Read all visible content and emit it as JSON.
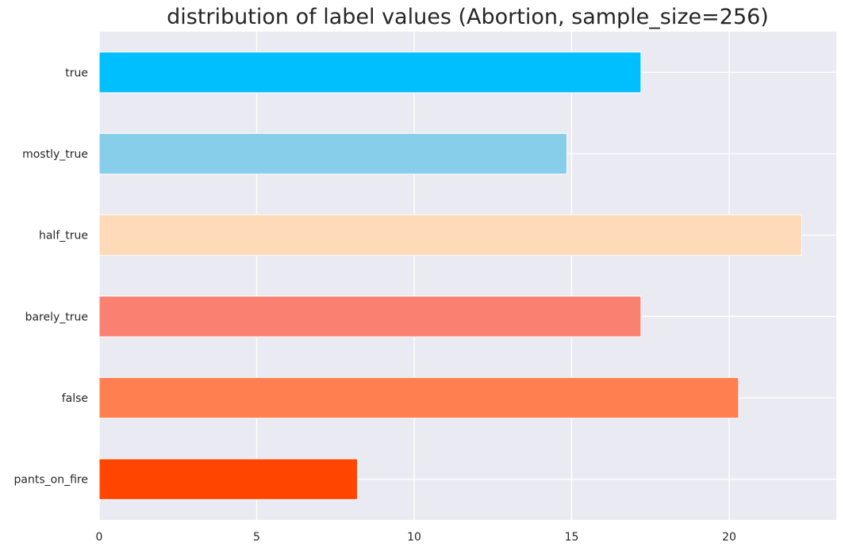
{
  "chart_data": {
    "type": "bar",
    "orientation": "horizontal",
    "title": "distribution of label values (Abortion, sample_size=256)",
    "xlabel": "",
    "ylabel": "",
    "categories": [
      "true",
      "mostly_true",
      "half_true",
      "barely_true",
      "false",
      "pants_on_fire"
    ],
    "values": [
      17.2,
      14.85,
      22.3,
      17.2,
      20.3,
      8.2
    ],
    "colors": [
      "#00bfff",
      "#87ceeb",
      "#ffdab9",
      "#fa8072",
      "#ff7f50",
      "#ff4500"
    ],
    "xlim": [
      0,
      23.4
    ],
    "xticks": [
      0,
      5,
      10,
      15,
      20
    ],
    "grid": true,
    "background": "#eaeaf2"
  }
}
